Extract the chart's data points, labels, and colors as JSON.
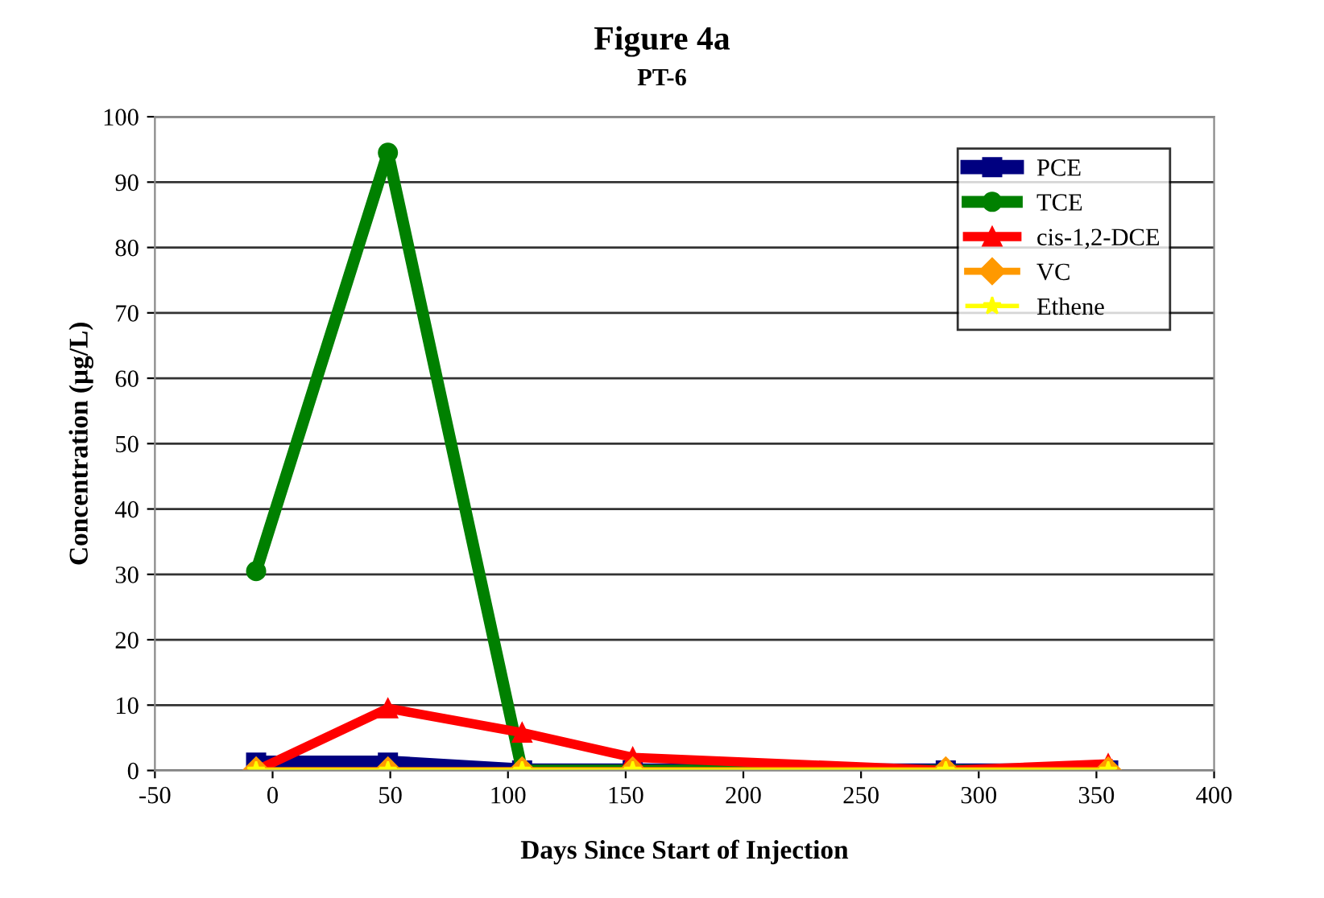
{
  "chart_data": {
    "type": "line",
    "title": "Figure 4a",
    "subtitle": "PT-6",
    "xlabel": "Days Since Start of Injection",
    "ylabel": "Concentration (µg/L)",
    "x": [
      -7,
      49,
      106,
      153,
      286,
      355
    ],
    "xlim": [
      -50,
      400
    ],
    "xticks": [
      -50,
      0,
      50,
      100,
      150,
      200,
      250,
      300,
      350,
      400
    ],
    "ylim": [
      0,
      100
    ],
    "yticks": [
      0,
      10,
      20,
      30,
      40,
      50,
      60,
      70,
      80,
      90,
      100
    ],
    "grid": "y",
    "legend": "top right",
    "series": [
      {
        "name": "PCE",
        "color": "#000080",
        "marker": "square",
        "values": [
          1.2,
          1.2,
          0,
          0,
          0,
          0
        ]
      },
      {
        "name": "TCE",
        "color": "#008000",
        "marker": "circle",
        "values": [
          30.5,
          94.5,
          0,
          0,
          0,
          0
        ]
      },
      {
        "name": "cis-1,2-DCE",
        "color": "#ff0000",
        "marker": "triangle",
        "values": [
          0,
          9.5,
          5.8,
          2,
          0,
          1
        ]
      },
      {
        "name": "VC",
        "color": "#ff9900",
        "marker": "diamond",
        "values": [
          0,
          0,
          0,
          0,
          0,
          0
        ]
      },
      {
        "name": "Ethene",
        "color": "#ffff00",
        "marker": "star",
        "values": [
          0,
          0,
          0,
          0,
          0,
          0
        ]
      }
    ]
  }
}
